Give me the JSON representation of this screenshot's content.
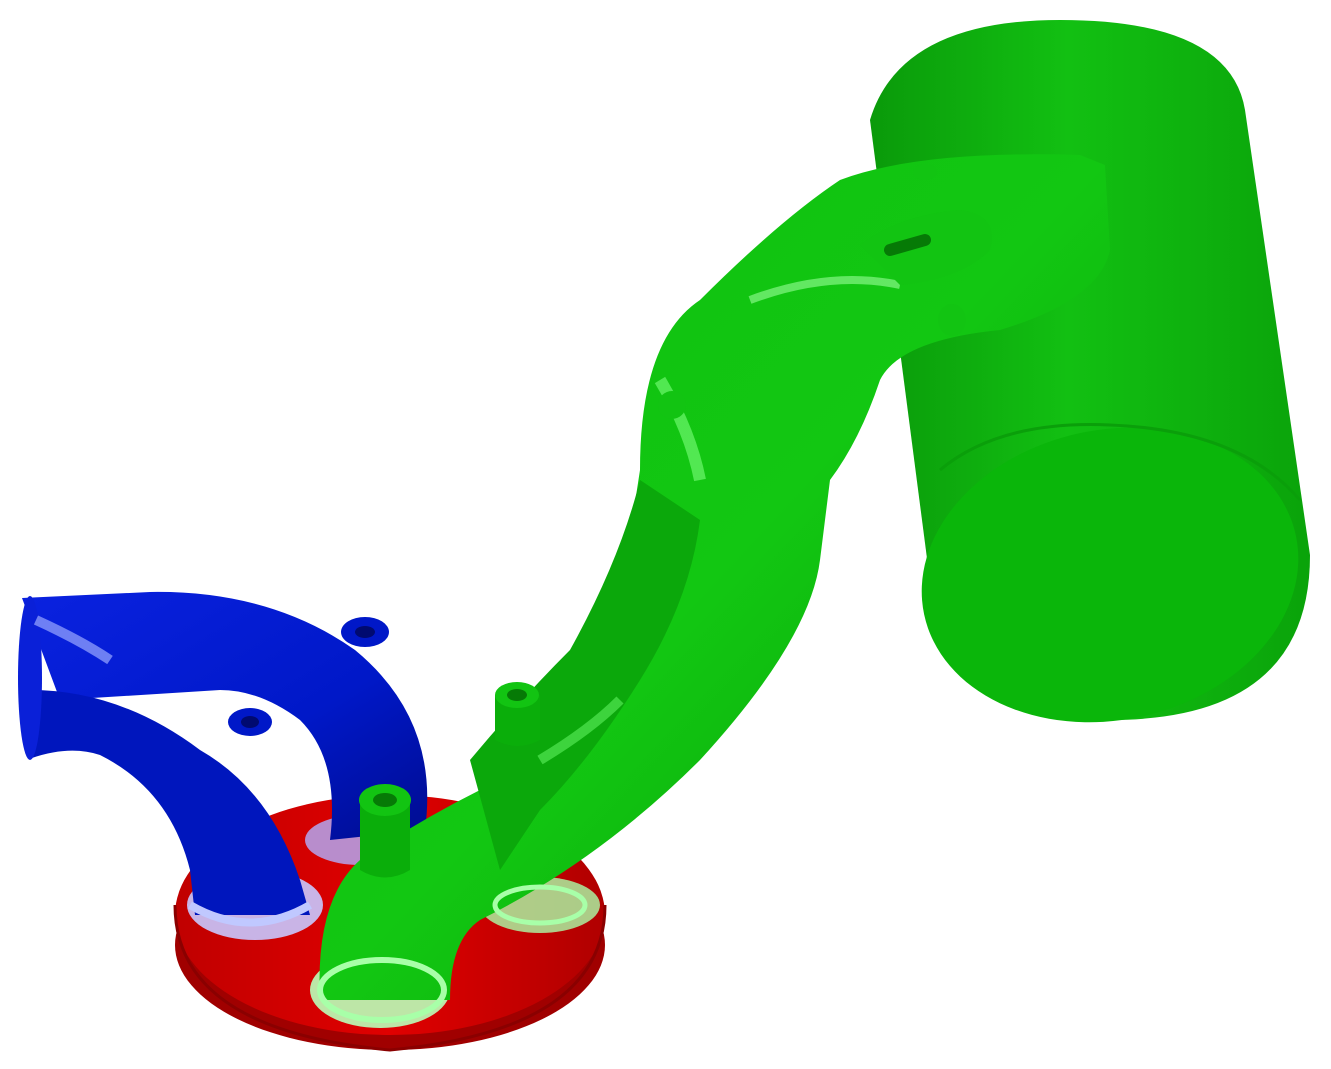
{
  "model": {
    "parts": [
      {
        "id": "cylinder-head",
        "color": "#d00000",
        "shade": "#9a0000",
        "highlight": "#ff5a5a"
      },
      {
        "id": "intake-runners",
        "color": "#0018c8",
        "shade": "#000a80",
        "highlight": "#8c9cff"
      },
      {
        "id": "exhaust-manifold",
        "color": "#09b309",
        "shade": "#067a06",
        "highlight": "#7dff7d"
      },
      {
        "id": "exhaust-plenum",
        "color": "#0bb80b",
        "shade": "#078a07",
        "highlight": "#5fe05f"
      }
    ],
    "background": "#ffffff"
  }
}
